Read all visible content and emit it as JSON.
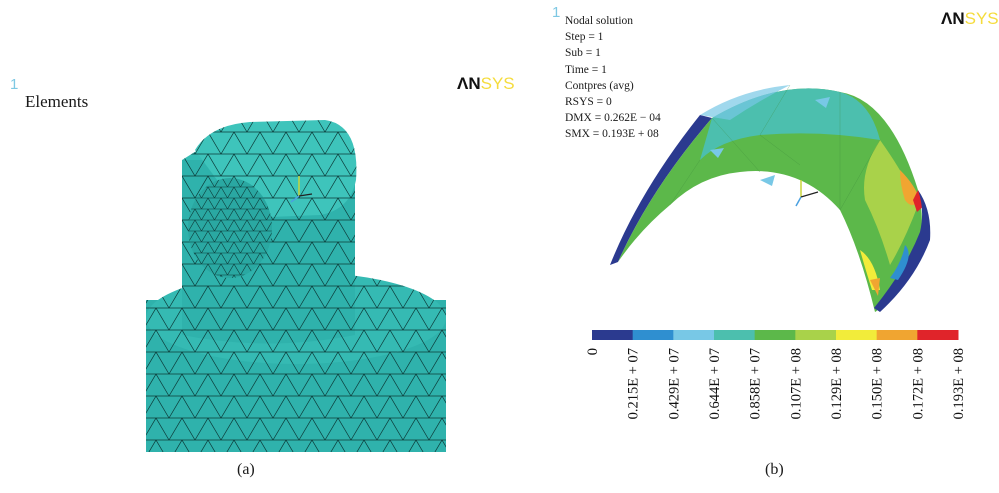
{
  "panel_a": {
    "window_number": "1",
    "logo_an": "ΛN",
    "logo_sys": "SYS",
    "title": "Elements",
    "caption": "(a)"
  },
  "panel_b": {
    "window_number": "1",
    "logo_an": "ΛN",
    "logo_sys": "SYS",
    "info_lines": [
      "Nodal solution",
      "Step = 1",
      "Sub = 1",
      "Time = 1",
      "Contpres (avg)",
      "RSYS = 0",
      "DMX = 0.262E − 04",
      "SMX = 0.193E + 08"
    ],
    "caption": "(b)",
    "legend": {
      "colors": [
        "#2b3a8f",
        "#2f8fd0",
        "#78c8e6",
        "#4cbfae",
        "#5cb84a",
        "#a9d24a",
        "#f2ec3a",
        "#f0a531",
        "#e0242a"
      ],
      "tick_labels": [
        "0",
        "0.215E + 07",
        "0.429E + 07",
        "0.644E + 07",
        "0.858E + 07",
        "0.107E + 08",
        "0.129E + 08",
        "0.150E + 08",
        "0.172E + 08",
        "0.193E + 08"
      ]
    }
  }
}
